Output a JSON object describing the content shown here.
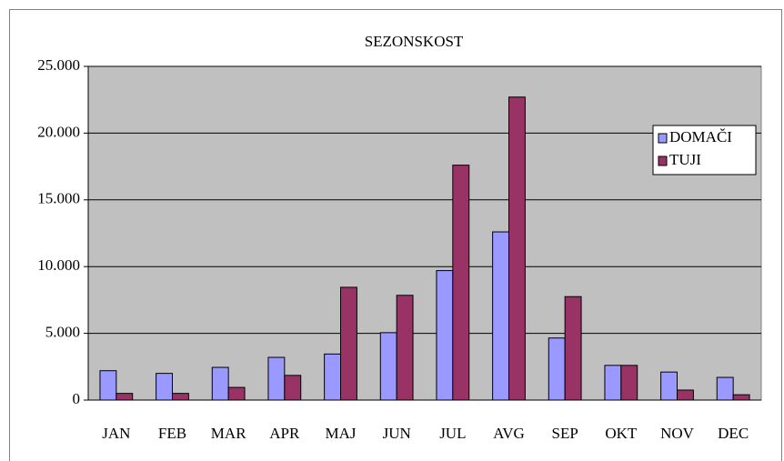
{
  "chart_data": {
    "type": "bar",
    "title": "SEZONSKOST",
    "categories": [
      "JAN",
      "FEB",
      "MAR",
      "APR",
      "MAJ",
      "JUN",
      "JUL",
      "AVG",
      "SEP",
      "OKT",
      "NOV",
      "DEC"
    ],
    "series": [
      {
        "name": "DOMAČI",
        "color": "#9999ff",
        "values": [
          2200,
          2000,
          2450,
          3200,
          3450,
          5050,
          9700,
          12600,
          4650,
          2600,
          2100,
          1700
        ]
      },
      {
        "name": "TUJI",
        "color": "#993366",
        "values": [
          500,
          500,
          950,
          1850,
          8450,
          7850,
          17600,
          22700,
          7750,
          2600,
          750,
          400
        ]
      }
    ],
    "ylim": [
      0,
      25000
    ],
    "yticks": [
      0,
      {
        "value": 5000,
        "label": "5.000"
      },
      {
        "value": 10000,
        "label": "10.000"
      },
      {
        "value": 15000,
        "label": "15.000"
      },
      {
        "value": 20000,
        "label": "20.000"
      },
      {
        "value": 25000,
        "label": "25.000"
      }
    ],
    "grid": true,
    "legend": "right"
  }
}
